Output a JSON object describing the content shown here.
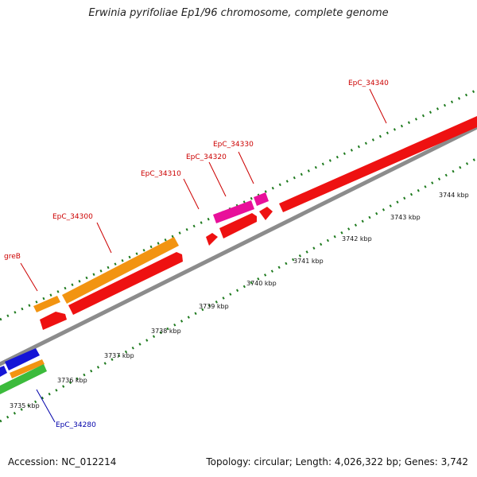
{
  "header": {
    "title": "Erwinia pyrifoliae Ep1/96 chromosome, complete genome"
  },
  "footer": {
    "accession": "Accession: NC_012214",
    "topology_summary": "Topology: circular; Length: 4,026,322 bp; Genes: 3,742"
  },
  "colors": {
    "backbone": "#8c8c8c",
    "tick": "#1e7a1e",
    "label_red": "#cc0000",
    "label_blue": "#0000aa",
    "cds_red": "#ee1111",
    "cds_orange": "#f29411",
    "cds_magenta": "#e8109a",
    "cds_blue": "#1515d6",
    "cds_green": "#3cbb3c"
  },
  "scale": {
    "unit": "kbp",
    "ticks": [
      {
        "kbp": 3735,
        "label": "3735 kbp"
      },
      {
        "kbp": 3736,
        "label": "3736 kbp"
      },
      {
        "kbp": 3737,
        "label": "3737 kbp"
      },
      {
        "kbp": 3738,
        "label": "3738 kbp"
      },
      {
        "kbp": 3739,
        "label": "3739 kbp"
      },
      {
        "kbp": 3740,
        "label": "3740 kbp"
      },
      {
        "kbp": 3741,
        "label": "3741 kbp"
      },
      {
        "kbp": 3742,
        "label": "3742 kbp"
      },
      {
        "kbp": 3743,
        "label": "3743 kbp"
      },
      {
        "kbp": 3744,
        "label": "3744 kbp"
      }
    ]
  },
  "gene_labels": [
    {
      "name": "greB",
      "color": "red"
    },
    {
      "name": "EpC_34300",
      "color": "red"
    },
    {
      "name": "EpC_34310",
      "color": "red"
    },
    {
      "name": "EpC_34320",
      "color": "red"
    },
    {
      "name": "EpC_34330",
      "color": "red"
    },
    {
      "name": "EpC_34340",
      "color": "red"
    },
    {
      "name": "EpC_34280",
      "color": "blue"
    }
  ]
}
